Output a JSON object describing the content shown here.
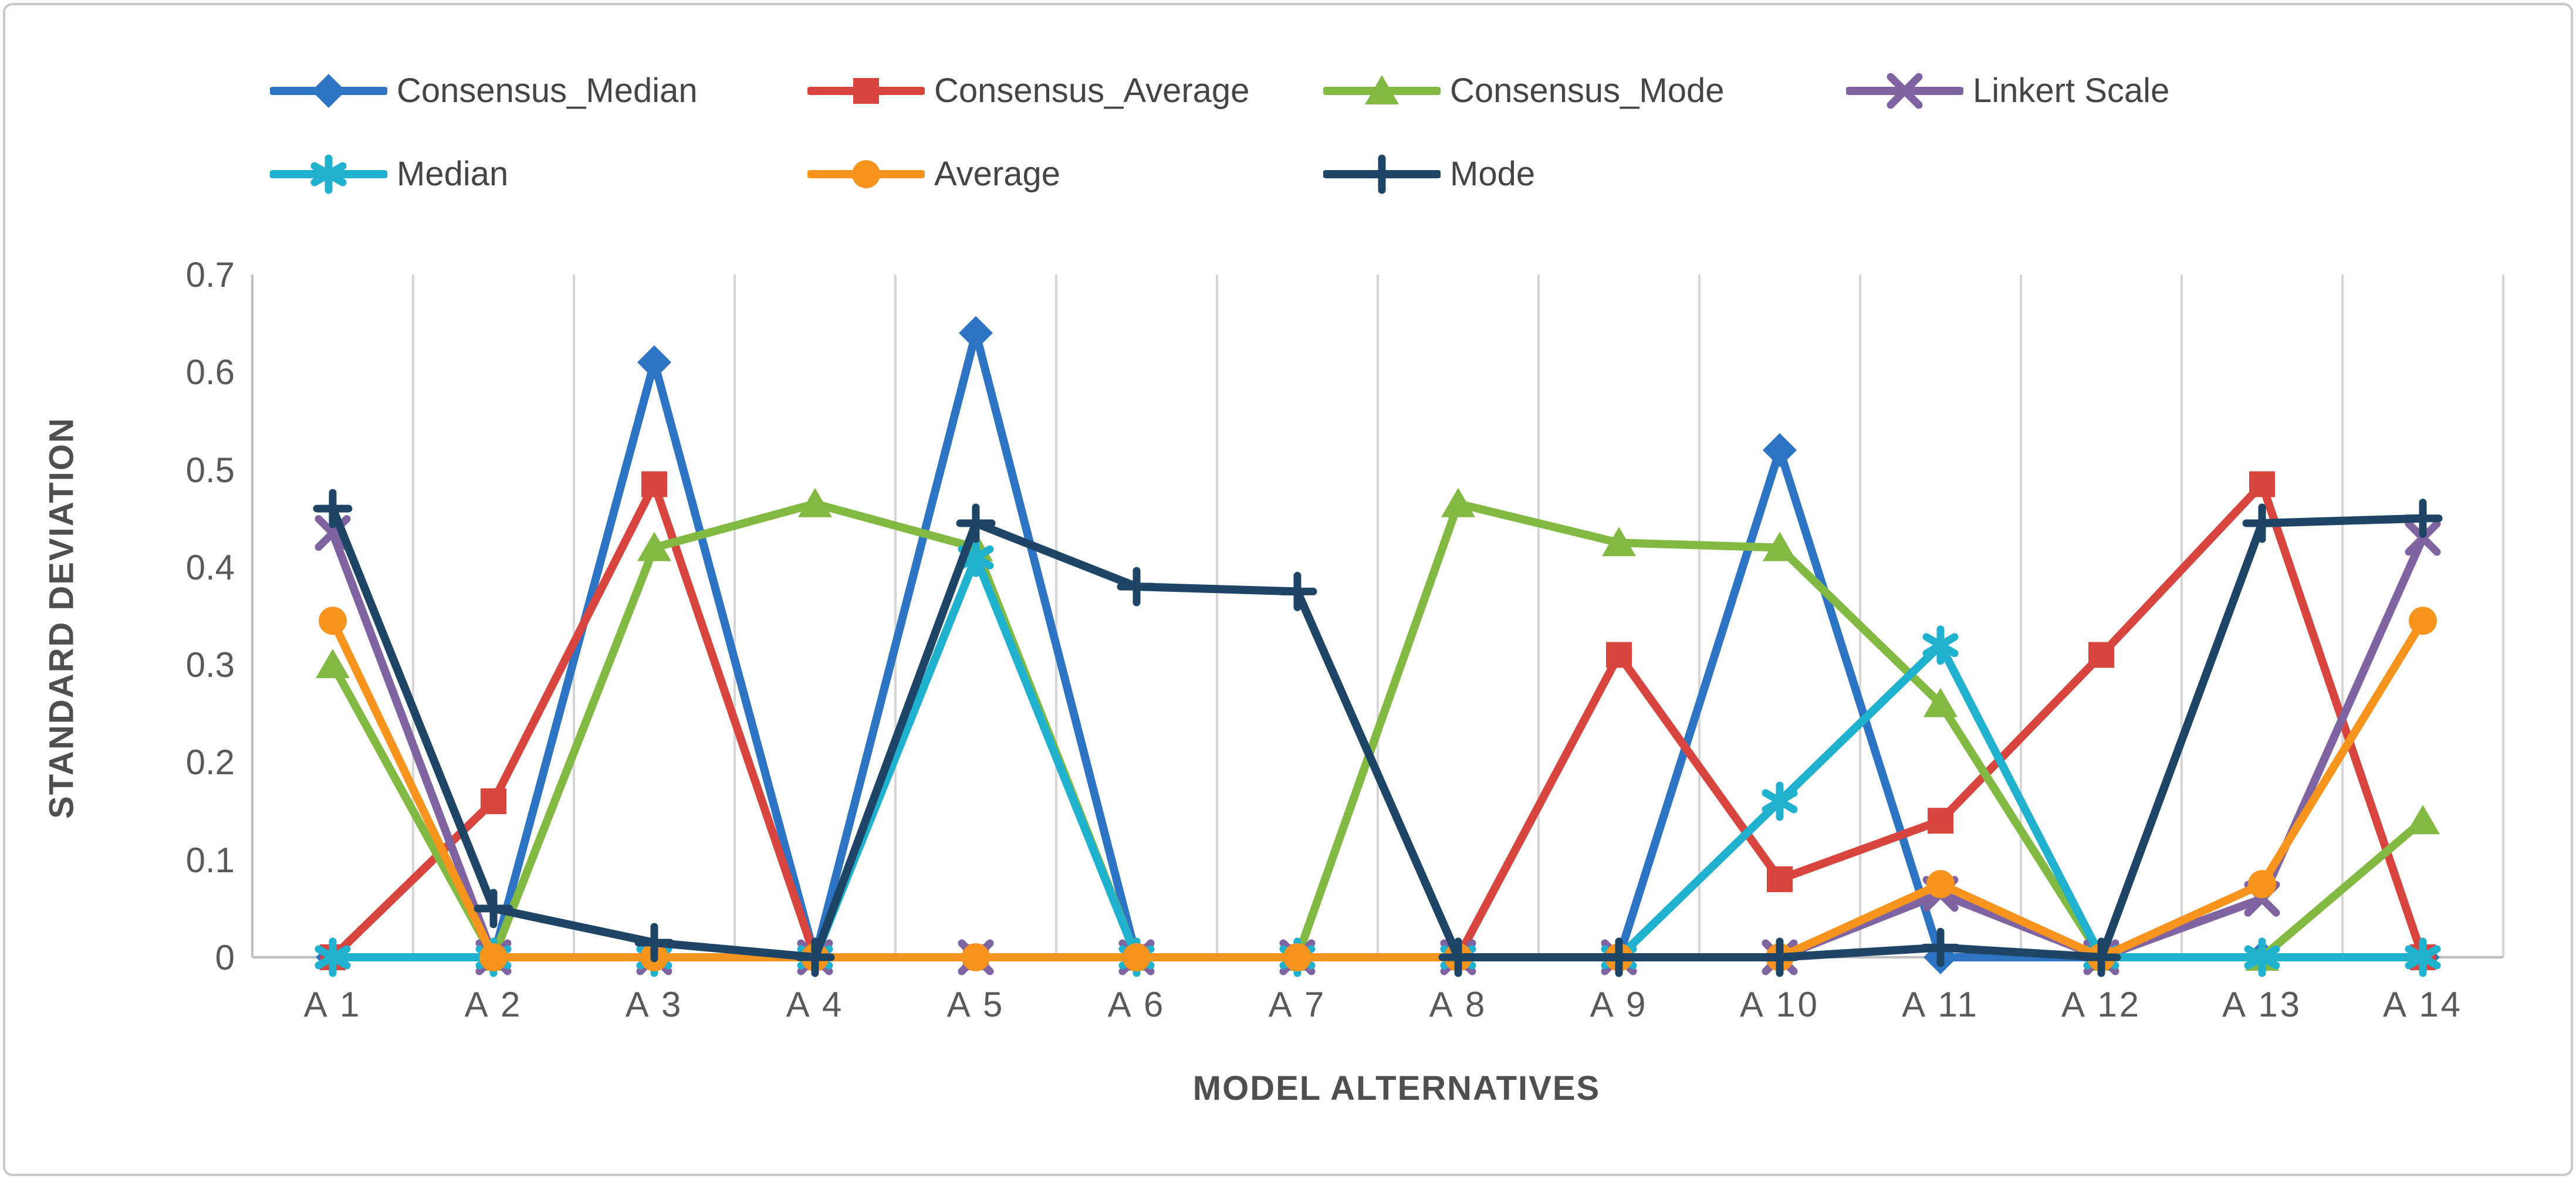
{
  "figure": {
    "background": "#ffffff",
    "border_color": "#c9c9c9",
    "gridline_color": "#d6d6d6",
    "axis_line_color": "#bfbfbf",
    "tick_text_color": "#595959",
    "legend_text_color": "#454545"
  },
  "chart_data": {
    "type": "line",
    "title": "",
    "xlabel": "MODEL ALTERNATIVES",
    "ylabel": "STANDARD DEVIATION",
    "categories": [
      "A 1",
      "A 2",
      "A 3",
      "A 4",
      "A 5",
      "A 6",
      "A 7",
      "A 8",
      "A 9",
      "A 10",
      "A 11",
      "A 12",
      "A 13",
      "A 14"
    ],
    "ylim": [
      0,
      0.7
    ],
    "ytick_labels": [
      "0",
      "0.1",
      "0.2",
      "0.3",
      "0.4",
      "0.5",
      "0.6",
      "0.7"
    ],
    "grid": "vertical-only",
    "legend_position": "top-left, two rows",
    "series": [
      {
        "name": "Consensus_Median",
        "color": "#2d74c4",
        "marker": "diamond",
        "values": [
          0,
          0,
          0.61,
          0,
          0.64,
          0,
          0,
          0,
          0,
          0.52,
          0,
          0,
          0,
          0
        ]
      },
      {
        "name": "Consensus_Average",
        "color": "#d8453e",
        "marker": "square",
        "values": [
          0,
          0.16,
          0.485,
          0,
          0,
          0,
          0,
          0,
          0.31,
          0.08,
          0.14,
          0.31,
          0.485,
          0
        ]
      },
      {
        "name": "Consensus_Mode",
        "color": "#82b943",
        "marker": "triangle",
        "values": [
          0.3,
          0,
          0.42,
          0.465,
          0.42,
          0,
          0,
          0.465,
          0.425,
          0.42,
          0.26,
          0,
          0,
          0.14
        ]
      },
      {
        "name": "Linkert Scale",
        "color": "#8064a2",
        "marker": "x",
        "values": [
          0.435,
          0,
          0,
          0,
          0,
          0,
          0,
          0,
          0,
          0,
          0.065,
          0,
          0.06,
          0.43
        ]
      },
      {
        "name": "Median",
        "color": "#1fb1ce",
        "marker": "asterisk",
        "values": [
          0,
          0,
          0,
          0,
          0.41,
          0,
          0,
          0,
          0,
          0.16,
          0.32,
          0,
          0,
          0
        ]
      },
      {
        "name": "Average",
        "color": "#f7941e",
        "marker": "circle",
        "values": [
          0.345,
          0,
          0,
          0,
          0,
          0,
          0,
          0,
          0,
          0,
          0.075,
          0,
          0.075,
          0.345
        ]
      },
      {
        "name": "Mode",
        "color": "#1e4566",
        "marker": "plus",
        "values": [
          0.46,
          0.05,
          0.015,
          0,
          0.445,
          0.38,
          0.375,
          0,
          0,
          0,
          0.01,
          0,
          0.445,
          0.45
        ]
      }
    ]
  }
}
